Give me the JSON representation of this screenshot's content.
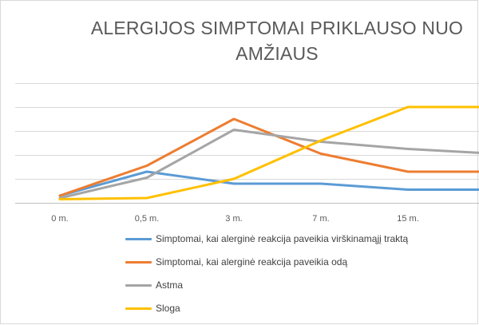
{
  "chart_data": {
    "type": "line",
    "title": "ALERGIJOS SIMPTOMAI PRIKLAUSO NUO AMŽIAUS",
    "xlabel": "",
    "ylabel": "",
    "categories": [
      "0 m.",
      "0,5 m.",
      "3 m.",
      "7 m.",
      "15 m.",
      ""
    ],
    "ylim": [
      0,
      5
    ],
    "grid": true,
    "legend_position": "bottom",
    "series": [
      {
        "name": "Simptomai, kai alerginė reakcija paveikia virškinamąjį traktą",
        "color": "#5B9BD5",
        "values": [
          0.3,
          1.3,
          0.8,
          0.8,
          0.55,
          0.55
        ]
      },
      {
        "name": "Simptomai, kai alerginė reakcija paveikia odą",
        "color": "#ED7D31",
        "values": [
          0.3,
          1.55,
          3.5,
          2.05,
          1.3,
          1.3
        ]
      },
      {
        "name": "Astma",
        "color": "#A5A5A5",
        "values": [
          0.2,
          1.05,
          3.05,
          2.55,
          2.25,
          2.05
        ]
      },
      {
        "name": "Sloga",
        "color": "#FFC000",
        "values": [
          0.15,
          0.2,
          1.0,
          2.6,
          4.0,
          4.0
        ]
      }
    ]
  }
}
